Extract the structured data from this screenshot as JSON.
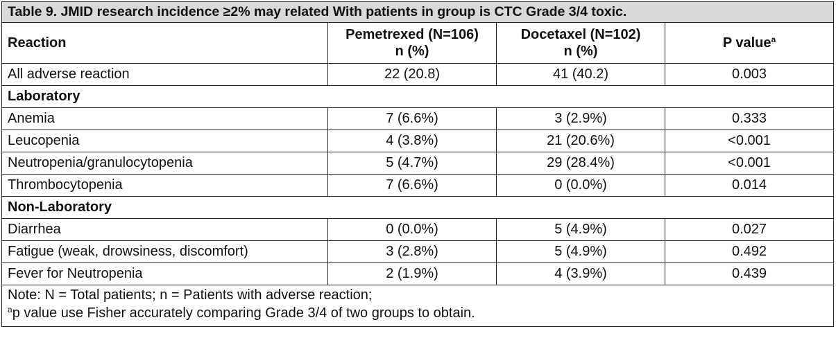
{
  "caption": "Table 9. JMID research incidence ≥2% may related With patients in group is CTC Grade 3/4 toxic.",
  "headers": {
    "reaction": "Reaction",
    "pemetrexed_line1": "Pemetrexed (N=106)",
    "pemetrexed_line2": "n (%)",
    "docetaxel_line1": "Docetaxel (N=102)",
    "docetaxel_line2": "n (%)",
    "pvalue": "P value",
    "pvalue_sup": "a"
  },
  "rows": [
    {
      "type": "data",
      "reaction": "All adverse reaction",
      "pemetrexed": "22 (20.8)",
      "docetaxel": "41 (40.2)",
      "p": "0.003"
    },
    {
      "type": "group",
      "label": "Laboratory"
    },
    {
      "type": "data",
      "reaction": "Anemia",
      "pemetrexed": "7 (6.6%)",
      "docetaxel": "3 (2.9%)",
      "p": "0.333"
    },
    {
      "type": "data",
      "reaction": "Leucopenia",
      "pemetrexed": "4 (3.8%)",
      "docetaxel": "21 (20.6%)",
      "p": "<0.001"
    },
    {
      "type": "data",
      "reaction": "Neutropenia/granulocytopenia",
      "pemetrexed": "5 (4.7%)",
      "docetaxel": "29 (28.4%)",
      "p": "<0.001"
    },
    {
      "type": "data",
      "reaction": "Thrombocytopenia",
      "pemetrexed": "7 (6.6%)",
      "docetaxel": "0 (0.0%)",
      "p": "0.014"
    },
    {
      "type": "group",
      "label": "Non-Laboratory"
    },
    {
      "type": "data",
      "reaction": "Diarrhea",
      "pemetrexed": "0 (0.0%)",
      "docetaxel": "5 (4.9%)",
      "p": "0.027"
    },
    {
      "type": "data",
      "reaction": "Fatigue (weak, drowsiness, discomfort)",
      "pemetrexed": "3 (2.8%)",
      "docetaxel": "5 (4.9%)",
      "p": "0.492"
    },
    {
      "type": "data",
      "reaction": "Fever for Neutropenia",
      "pemetrexed": "2 (1.9%)",
      "docetaxel": "4 (3.9%)",
      "p": "0.439"
    }
  ],
  "note": {
    "line1": "Note: N = Total patients; n = Patients with adverse reaction;",
    "line2_sup": "a",
    "line2": "p value use Fisher accurately comparing Grade 3/4 of two groups to obtain."
  }
}
